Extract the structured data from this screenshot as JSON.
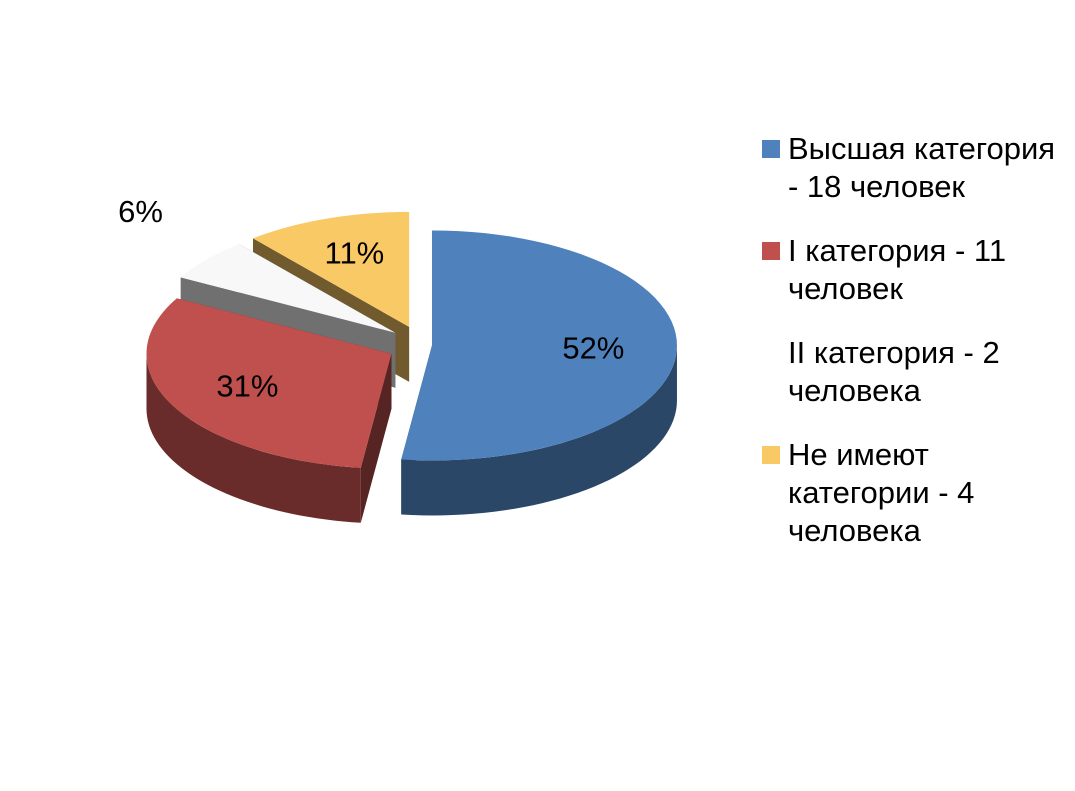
{
  "chart_data": {
    "type": "pie",
    "categories": [
      "Высшая категория - 18 человек",
      "I категория - 11 человек",
      "II категория - 2 человека",
      "Не имеют категории - 4 человека"
    ],
    "values": [
      52,
      31,
      6,
      11
    ],
    "value_labels": [
      "52%",
      "31%",
      "6%",
      "11%"
    ],
    "colors": [
      "#4f81bd",
      "#c0504d",
      "#f8f8f8",
      "#f9c966"
    ],
    "legend": "right"
  }
}
